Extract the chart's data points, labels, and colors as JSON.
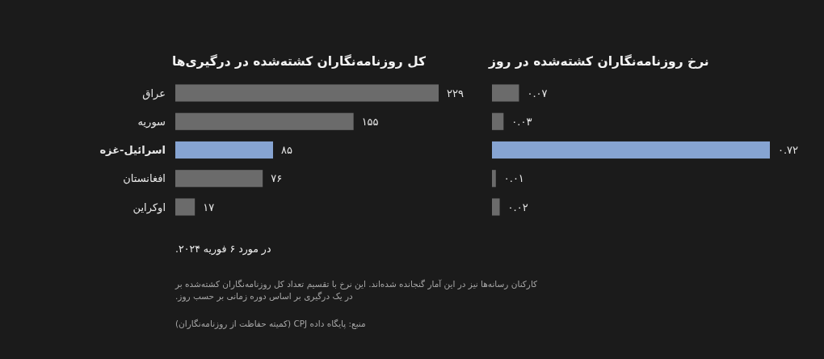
{
  "chart_data": [
    {
      "type": "bar",
      "orientation": "horizontal",
      "title": "کل روزنامه‌نگاران کشته‌شده در درگیری‌ها",
      "categories": [
        "عراق",
        "سوریه",
        "اسرائیل-غزه",
        "افغانستان",
        "اوکراین"
      ],
      "values": [
        229,
        155,
        85,
        76,
        17
      ],
      "value_labels": [
        "۲۲۹",
        "۱۵۵",
        "۸۵",
        "۷۶",
        "۱۷"
      ],
      "colors": [
        "#6b6b6b",
        "#6b6b6b",
        "#86a4d2",
        "#6b6b6b",
        "#6b6b6b"
      ],
      "tick_labels": "y",
      "annotations": [
        "در مورد ۶ فوریه ۲۰۲۴.",
        "کارکنان رسانه‌ها نیز در این آمار گنجانده شده‌اند. این نرخ با تقسیم تعداد کل روزنامه‌نگاران کشته‌شده بر\nدر یک درگیری بر اساس دوره زمانی بر حسب روز.",
        "منبع: پایگاه داده CPJ (کمیته حفاظت از روزنامه‌نگاران)"
      ]
    },
    {
      "type": "bar",
      "orientation": "horizontal",
      "title": "نرخ روزنامه‌نگاران کشته‌شده در روز",
      "categories": [
        null,
        null,
        null,
        null,
        null
      ],
      "values": [
        0.07,
        0.03,
        0.72,
        0.01,
        0.02
      ],
      "value_labels": [
        "۰.۰۷",
        "۰.۰۳",
        "۰.۷۲",
        "۰.۰۱",
        "۰.۰۲"
      ],
      "colors": [
        "#6b6b6b",
        "#6b6b6b",
        "#86a4d2",
        "#6b6b6b",
        "#6b6b6b"
      ]
    }
  ]
}
